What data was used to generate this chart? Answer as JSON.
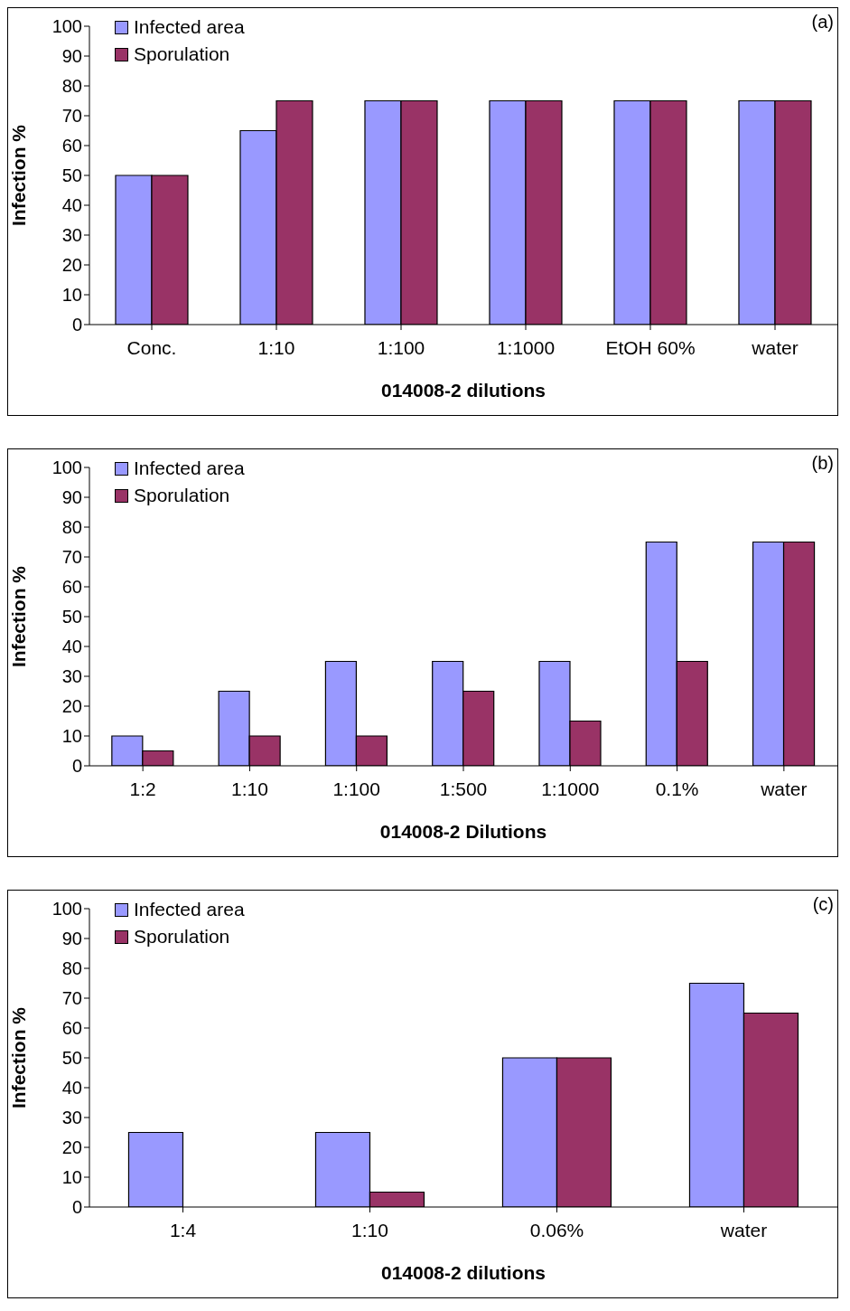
{
  "chart_data": [
    {
      "type": "bar",
      "xlabel": "014008-2 dilutions",
      "ylabel": "Infection %",
      "annotations": [
        "(a)"
      ],
      "categories": [
        "Conc.",
        "1:10",
        "1:100",
        "1:1000",
        "EtOH 60%",
        "water"
      ],
      "series": [
        {
          "name": "Infected area",
          "color": "#9999ff",
          "values": [
            50,
            65,
            75,
            75,
            75,
            75
          ]
        },
        {
          "name": "Sporulation",
          "color": "#993366",
          "values": [
            50,
            75,
            75,
            75,
            75,
            75
          ]
        }
      ],
      "ylim": [
        0,
        100
      ],
      "yticks": [
        0,
        10,
        20,
        30,
        40,
        50,
        60,
        70,
        80,
        90,
        100
      ],
      "grid": false,
      "legend": "top left"
    },
    {
      "type": "bar",
      "xlabel": "014008-2 Dilutions",
      "ylabel": "Infection %",
      "annotations": [
        "(b)"
      ],
      "categories": [
        "1:2",
        "1:10",
        "1:100",
        "1:500",
        "1:1000",
        "0.1%",
        "water"
      ],
      "series": [
        {
          "name": "Infected area",
          "color": "#9999ff",
          "values": [
            10,
            25,
            35,
            35,
            35,
            75,
            75
          ]
        },
        {
          "name": "Sporulation",
          "color": "#993366",
          "values": [
            5,
            10,
            10,
            25,
            15,
            35,
            75
          ]
        }
      ],
      "ylim": [
        0,
        100
      ],
      "yticks": [
        0,
        10,
        20,
        30,
        40,
        50,
        60,
        70,
        80,
        90,
        100
      ],
      "grid": false,
      "legend": "top left"
    },
    {
      "type": "bar",
      "xlabel": "014008-2 dilutions",
      "ylabel": "Infection %",
      "annotations": [
        "(c)"
      ],
      "categories": [
        "1:4",
        "1:10",
        "0.06%",
        "water"
      ],
      "series": [
        {
          "name": "Infected area",
          "color": "#9999ff",
          "values": [
            25,
            25,
            50,
            75
          ]
        },
        {
          "name": "Sporulation",
          "color": "#993366",
          "values": [
            0,
            5,
            50,
            65
          ]
        }
      ],
      "ylim": [
        0,
        100
      ],
      "yticks": [
        0,
        10,
        20,
        30,
        40,
        50,
        60,
        70,
        80,
        90,
        100
      ],
      "grid": false,
      "legend": "top left"
    }
  ]
}
